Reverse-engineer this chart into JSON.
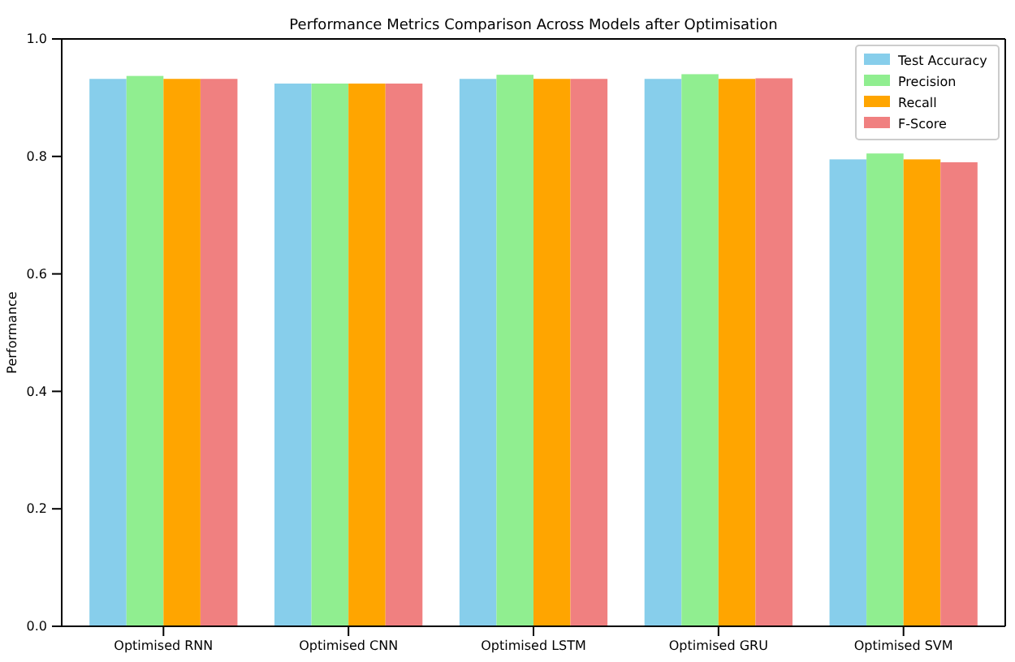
{
  "chart_data": {
    "type": "bar",
    "title": "Performance Metrics Comparison Across Models after Optimisation",
    "ylabel": "Performance",
    "categories": [
      "Optimised RNN",
      "Optimised CNN",
      "Optimised LSTM",
      "Optimised GRU",
      "Optimised SVM"
    ],
    "series": [
      {
        "name": "Test Accuracy",
        "color": "#87ceeb",
        "values": [
          0.932,
          0.924,
          0.932,
          0.932,
          0.795
        ]
      },
      {
        "name": "Precision",
        "color": "#90ee90",
        "values": [
          0.937,
          0.924,
          0.939,
          0.94,
          0.805
        ]
      },
      {
        "name": "Recall",
        "color": "#ffa500",
        "values": [
          0.932,
          0.924,
          0.932,
          0.932,
          0.795
        ]
      },
      {
        "name": "F-Score",
        "color": "#f08080",
        "values": [
          0.932,
          0.924,
          0.932,
          0.933,
          0.79
        ]
      }
    ],
    "ylim": [
      0,
      1
    ],
    "yticks": [
      {
        "value": 0,
        "label": "0.0"
      },
      {
        "value": 0.2,
        "label": "0.2"
      },
      {
        "value": 0.4,
        "label": "0.4"
      },
      {
        "value": 0.6,
        "label": "0.6"
      },
      {
        "value": 0.8,
        "label": "0.8"
      },
      {
        "value": 1,
        "label": "1.0"
      }
    ],
    "legend": "top right",
    "grid": false
  }
}
